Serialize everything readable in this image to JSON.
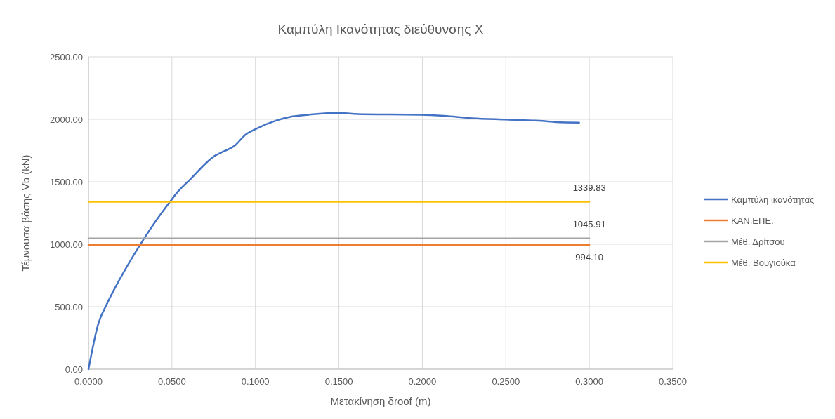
{
  "chart_data": {
    "type": "line",
    "title": "Καμπύλη Ικανότητας διεύθυνσης Χ",
    "xlabel": "Μετακίνηση δroof (m)",
    "ylabel": "Τέμνουσα βάσης Vb (kN)",
    "xlim": [
      0,
      0.35
    ],
    "xticks": [
      {
        "value": 0,
        "label": "0.0000"
      },
      {
        "value": 0.05,
        "label": "0.0500"
      },
      {
        "value": 0.1,
        "label": "0.1000"
      },
      {
        "value": 0.15,
        "label": "0.1500"
      },
      {
        "value": 0.2,
        "label": "0.2000"
      },
      {
        "value": 0.25,
        "label": "0.2500"
      },
      {
        "value": 0.3,
        "label": "0.3000"
      },
      {
        "value": 0.35,
        "label": "0.3500"
      }
    ],
    "ylim": [
      0,
      2500
    ],
    "yticks": [
      {
        "value": 0,
        "label": "0.00"
      },
      {
        "value": 500,
        "label": "500.00"
      },
      {
        "value": 1000,
        "label": "1000.00"
      },
      {
        "value": 1500,
        "label": "1500.00"
      },
      {
        "value": 2000,
        "label": "2000.00"
      },
      {
        "value": 2500,
        "label": "2500.00"
      }
    ],
    "grid": true,
    "legend": "right",
    "marker": "none",
    "line_style": "solid",
    "series": [
      {
        "name": "Καμπύλη ικανότητας",
        "color": "#4472c4",
        "x": [
          0,
          0.006,
          0.0109,
          0.0228,
          0.0333,
          0.0487,
          0.0536,
          0.0606,
          0.0761,
          0.0803,
          0.0873,
          0.0943,
          0.1006,
          0.1125,
          0.1223,
          0.1318,
          0.15,
          0.1598,
          0.199,
          0.213,
          0.2298,
          0.2501,
          0.2718,
          0.2802,
          0.2939
        ],
        "values": [
          0,
          369,
          518,
          816,
          1046,
          1338,
          1422,
          1515,
          1711,
          1739,
          1786,
          1879,
          1925,
          1991,
          2024,
          2037,
          2052,
          2043,
          2037,
          2028,
          2009,
          1998,
          1987,
          1978,
          1974
        ]
      },
      {
        "name": "ΚΑΝ.ΕΠΕ.",
        "color": "#ed7d31",
        "x": [
          0,
          0.3
        ],
        "values": [
          994.1,
          994.1
        ],
        "value_labels": [
          null,
          "994.10"
        ]
      },
      {
        "name": "Μέθ. Δρίτσου",
        "color": "#a5a5a5",
        "x": [
          0,
          0.3
        ],
        "values": [
          1045.91,
          1045.91
        ],
        "value_labels": [
          null,
          "1045.91"
        ]
      },
      {
        "name": "Μέθ. Βουγιούκα",
        "color": "#ffc000",
        "x": [
          0,
          0.3
        ],
        "values": [
          1339.83,
          1339.83
        ],
        "value_labels": [
          null,
          "1339.83"
        ]
      }
    ]
  }
}
